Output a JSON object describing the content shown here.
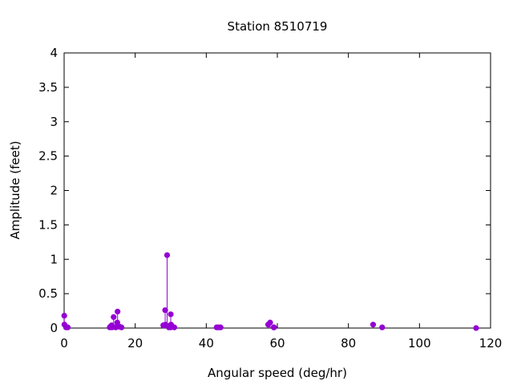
{
  "chart_data": {
    "type": "scatter",
    "style": "impulses with points",
    "title": "Station 8510719",
    "xlabel": "Angular speed (deg/hr)",
    "ylabel": "Amplitude (feet)",
    "xlim": [
      0,
      120
    ],
    "ylim": [
      0,
      4
    ],
    "xticks": [
      "0",
      "20",
      "40",
      "60",
      "80",
      "100",
      "120"
    ],
    "yticks": [
      "0",
      "0.5",
      "1",
      "1.5",
      "2",
      "2.5",
      "3",
      "3.5",
      "4"
    ],
    "grid": false,
    "color": "#9400d3",
    "x": [
      0.04,
      0.08,
      0.54,
      1.02,
      12.85,
      13.0,
      13.4,
      13.47,
      13.94,
      14.5,
      14.96,
      15.04,
      15.0,
      15.59,
      16.14,
      27.9,
      27.97,
      28.44,
      28.51,
      28.98,
      29.46,
      29.53,
      29.96,
      30.0,
      30.08,
      31.0,
      42.93,
      43.48,
      44.03,
      57.42,
      57.97,
      58.98,
      59.07,
      86.95,
      89.5,
      115.94
    ],
    "y": [
      0.18,
      0.05,
      0.01,
      0.01,
      0.01,
      0.02,
      0.04,
      0.01,
      0.16,
      0.01,
      0.08,
      0.24,
      0.02,
      0.02,
      0.01,
      0.04,
      0.04,
      0.26,
      0.05,
      1.06,
      0.01,
      0.03,
      0.01,
      0.2,
      0.05,
      0.01,
      0.01,
      0.01,
      0.01,
      0.05,
      0.08,
      0.01,
      0.01,
      0.05,
      0.01,
      0.0
    ]
  }
}
